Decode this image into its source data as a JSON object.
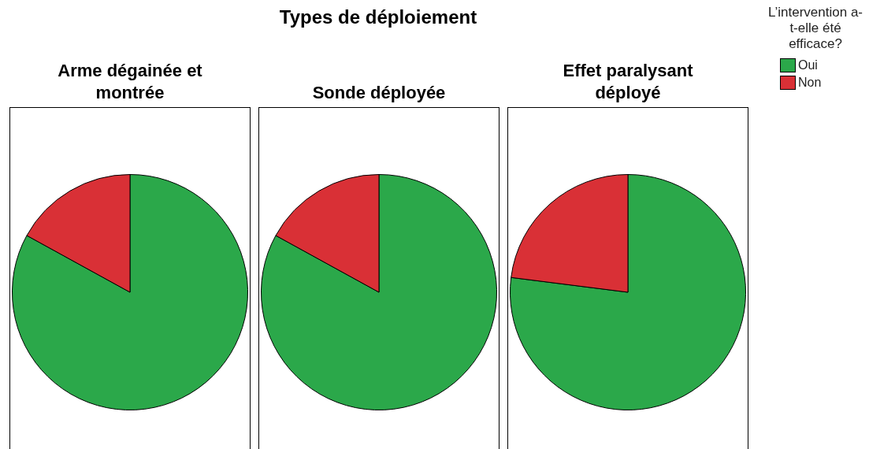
{
  "chart_data": [
    {
      "type": "other",
      "title": "Types de déploiement"
    },
    {
      "type": "pie",
      "title": "Arme dégainée et montrée",
      "categories": [
        "Oui",
        "Non"
      ],
      "values": [
        83,
        17
      ],
      "colors": [
        "#2ba84a",
        "#d93036"
      ],
      "legend": "right",
      "legend_title": "L’intervention a-t-elle été efficace?"
    },
    {
      "type": "pie",
      "title": "Sonde déployée",
      "categories": [
        null,
        null
      ],
      "values": [
        83,
        17
      ],
      "colors": [
        "#2ba84a",
        "#d93036"
      ]
    },
    {
      "type": "pie",
      "title": "Effet paralysant déployé",
      "categories": [
        null,
        null
      ],
      "values": [
        77,
        23
      ],
      "colors": [
        "#2ba84a",
        "#d93036"
      ]
    }
  ]
}
